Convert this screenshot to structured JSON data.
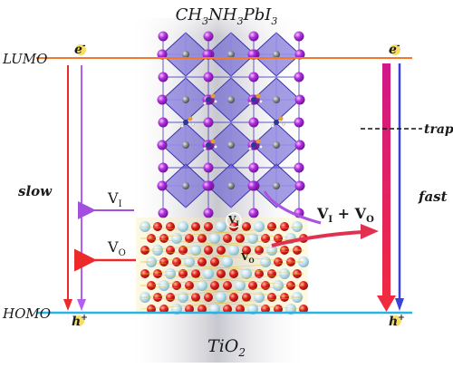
{
  "title": {
    "pre": "CH",
    "sub1": "3",
    "mid": "NH",
    "sub2": "3",
    "post": "PbI",
    "sub3": "3"
  },
  "substrate": {
    "base": "TiO",
    "sub": "2"
  },
  "levels": {
    "lumo": "LUMO",
    "homo": "HOMO",
    "lumo_color": "#f07a2a",
    "homo_color": "#29b4e8"
  },
  "carriers": {
    "electron_left": "e",
    "electron_right": "e",
    "hole_left": "h",
    "hole_right": "h",
    "electron_sup": "-",
    "hole_sup": "+"
  },
  "labels": {
    "slow": "slow",
    "fast": "fast",
    "trap": "trap"
  },
  "vacancies": {
    "vi_left": {
      "base": "V",
      "sub": "I"
    },
    "vo_left": {
      "base": "V",
      "sub": "O"
    },
    "vi_site": {
      "base": "V",
      "sub": "I"
    },
    "vo_site": {
      "base": "V",
      "sub": "O"
    },
    "combined": {
      "base1": "V",
      "sub1": "I",
      "plus": " + ",
      "base2": "V",
      "sub2": "O"
    }
  },
  "colors": {
    "purple": "#a24fe0",
    "red": "#ec2a2a",
    "magenta": "#d81c6a",
    "blue": "#3a42d8",
    "octahedra": "#5b4fd0",
    "iodine": "#b02fe0",
    "oxygen": "#e4231c",
    "titanium": "#b9dbe8"
  }
}
